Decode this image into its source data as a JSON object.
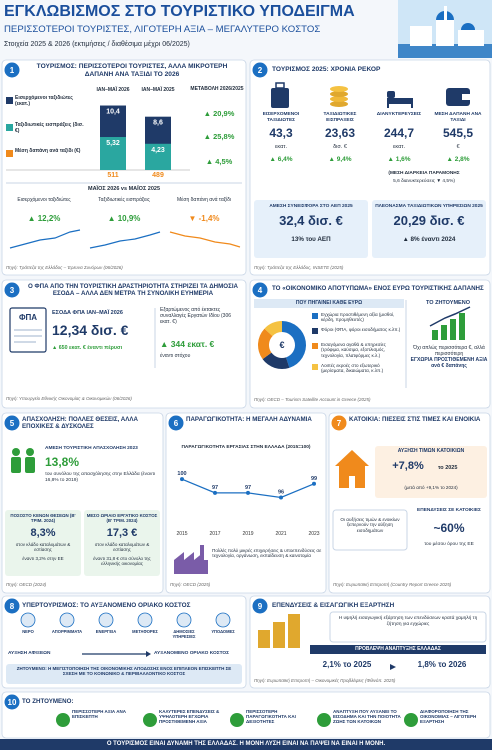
{
  "header": {
    "title": "ΕΓΚΛΩΒΙΣΜΟΣ ΣΤΟ ΤΟΥΡΙΣΤΙΚΟ ΥΠΟΔΕΙΓΜΑ",
    "subtitle": "ΠΕΡΙΣΣΟΤΕΡΟΙ ΤΟΥΡΙΣΤΕΣ, ΛΙΓΟΤΕΡΗ ΑΞΙΑ – ΜΕΓΑΛΥΤΕΡΟ ΚΟΣΤΟΣ",
    "note": "Στοιχεία 2025 & 2026 (εκτιμήσεις / διαθέσιμα μέχρι 06/2025)"
  },
  "s1": {
    "number": "1",
    "title": "ΤΟΥΡΙΣΜΟΣ: ΠΕΡΙΣΣΟΤΕΡΟΙ ΤΟΥΡΙΣΤΕΣ, ΑΛΛΑ ΜΙΚΡΟΤΕΡΗ ΔΑΠΑΝΗ ΑΝΑ ΤΑΞΙΔΙ ΤΟ 2026",
    "chart": {
      "type": "bar",
      "categories": [
        "ΙΑΝ–ΜΑΪ 2026",
        "ΙΑΝ–ΜΑΪ 2025"
      ],
      "series": [
        {
          "name": "Εισερχόμενοι ταξιδιώτες (εκατ.)",
          "color": "#1f3a68",
          "values": [
            10.4,
            8.6
          ],
          "value_labels": [
            "10,4",
            "8,6"
          ]
        },
        {
          "name": "Ταξιδιωτικές εισπράξεις (δισ. €)",
          "color": "#2aa7a0",
          "values": [
            5.32,
            4.23
          ],
          "value_labels": [
            "5,32",
            "4,23"
          ]
        },
        {
          "name": "Μέση δαπάνη ανά ταξίδι (€)",
          "color": "#f08a1c",
          "values": [
            511,
            489
          ]
        }
      ],
      "change_title": "ΜΕΤΑΒΟΛΗ 2026/2025",
      "changes": [
        "▲ 20,9%",
        "▲ 25,8%",
        "▲ 4,5%"
      ]
    },
    "may_title": "ΜΑΪΟΣ 2026 vs ΜΑΪΟΣ 2025",
    "may": [
      {
        "label": "Εισερχόμενοι ταξιδιώτες",
        "value": "▲ 12,2%"
      },
      {
        "label": "Ταξιδιωτικές εισπράξεις",
        "value": "▲ 10,9%"
      },
      {
        "label": "Μέση δαπάνη ανά ταξίδι",
        "value": "▼ -1,4%"
      }
    ],
    "source": "Πηγή: Τράπεζα της Ελλάδος – Έρευνα Συνόρων (06/2026)"
  },
  "s2": {
    "number": "2",
    "title": "ΤΟΥΡΙΣΜΟΣ 2025: ΧΡΟΝΙΑ ΡΕΚΟΡ",
    "stats": [
      {
        "label": "ΕΙΣΕΡΧΟΜΕΝΟΙ ΤΑΞΙΔΙΩΤΕΣ",
        "value": "43,3",
        "unit": "εκατ.",
        "change": "▲ 6,4%"
      },
      {
        "label": "ΤΑΞΙΔΙΩΤΙΚΕΣ ΕΙΣΠΡΑΞΕΙΣ",
        "value": "23,63",
        "unit": "δισ. €",
        "change": "▲ 9,4%"
      },
      {
        "label": "ΔΙΑΝΥΚΤΕΡΕΥΣΕΙΣ",
        "value": "244,7",
        "unit": "εκατ.",
        "change": "▲ 1,6%"
      },
      {
        "label": "ΜΕΣΗ ΔΑΠΑΝΗ ΑΝΑ ΤΑΞΙΔΙ",
        "value": "545,5",
        "unit": "€",
        "change": "▲ 2,8%"
      }
    ],
    "stay": [
      "(ΜΕΣΗ ΔΙΑΡΚΕΙΑ ΠΑΡΑΜΟΝΗΣ",
      "5,6 διανυκτερεύσεις ▼ 4,5%)"
    ],
    "boxes": [
      {
        "label": "ΑΜΕΣΗ ΣΥΝΕΙΣΦΟΡΑ ΣΤΟ ΑΕΠ 2025",
        "value": "32,4 δισ. €",
        "sub": "13% του ΑΕΠ"
      },
      {
        "label": "ΠΛΕΟΝΑΣΜΑ ΤΑΞΙΔΙΩΤΙΚΩΝ ΥΠΗΡΕΣΙΩΝ 2025",
        "value": "20,29 δισ. €",
        "sub": "▲ 8% έναντι 2024"
      }
    ],
    "source": "Πηγή: Τράπεζα της Ελλάδος, INSETE (2025)"
  },
  "s3": {
    "number": "3",
    "title": "Ο ΦΠΑ ΑΠΟ ΤΗΝ ΤΟΥΡΙΣΤΙΚΗ ΔΡΑΣΤΗΡΙΟΤΗΤΑ ΣΤΗΡΙΖΕΙ ΤΑ ΔΗΜΟΣΙΑ ΕΣΟΔΑ – ΑΛΛΑ ΔΕΝ ΜΕΤΡΑ ΤΗ ΣΥΝΟΛΙΚΗ ΕΥΗΜΕΡΙΑ",
    "icon": "ΦΠΑ",
    "label": "ΕΣΟΔΑ ΦΠΑ ΙΑΝ–ΜΑΪ 2026",
    "value": "12,34 δισ. €",
    "change": "▲ 650 εκατ. € έναντι πέρυσι",
    "note": "Εξαρτώμενος από έκτακτες συναλλαγές Εργατών Ιδίου (306 εκατ. €)",
    "extra": "▲ 344 εκατ. €",
    "extra_sub": "έναντι στόχου",
    "source": "Πηγή: Υπουργείο Εθνικής Οικονομίας & Οικονομικών (06/2026)"
  },
  "s4": {
    "number": "4",
    "title": "ΤΟ «ΟΙΚΟΝΟΜΙΚΟ ΑΠΟΤΥΠΩΜΑ» ΕΝΟΣ ΕΥΡΩ ΤΟΥΡΙΣΤΙΚΗΣ ΔΑΠΑΝΗΣ",
    "where_title": "ΠΟΥ ΠΗΓΑΙΝΕΙ ΚΑΘΕ ΕΥΡΩ",
    "chart": {
      "type": "pie",
      "categories": [
        "Εγχώρια προστιθέμενη αξία (μισθοί, κέρδη, προμηθευτές)",
        "Φόροι (ΦΠΑ, φόροι εισοδήματος κ.λπ.)",
        "Εισαγόμενα αγαθά & υπηρεσίες (τρόφιμα, καύσιμα, εξοπλισμός, τεχνολογία, πλατφόρμες κ.λ.)",
        "Λοιπές εκροές στο εξωτερικό (μερίσματα, δικαιώματα, κ.λπ.)"
      ],
      "values": [
        45,
        20,
        22,
        13
      ],
      "colors": [
        "#1b6fc2",
        "#1f3a68",
        "#f08a1c",
        "#f5c242"
      ],
      "center": "€"
    },
    "goal_title": "ΤΟ ΖΗΤΟΥΜΕΝΟ",
    "goal_text": [
      "Όχι απλώς περισσότερα €, αλλά περισσότερη",
      "ΕΓΧΩΡΙΑ ΠΡΟΣΤΙΘΕΜΕΝΗ ΑΞΙΑ ανά € δαπάνης"
    ],
    "source": "Πηγή: OECD – Tourism Satellite Account in Greece (2025)"
  },
  "s5": {
    "number": "5",
    "title": "ΑΠΑΣΧΟΛΗΣΗ: ΠΟΛΛΕΣ ΘΕΣΕΙΣ, ΑΛΛΑ ΕΠΟΧΙΚΕΣ & ΔΥΣΚΟΛΕΣ",
    "label": "ΑΜΕΣΗ ΤΟΥΡΙΣΤΙΚΗ ΑΠΑΣΧΟΛΗΣΗ 2023",
    "value": "13,8%",
    "text": "του συνόλου της απασχόλησης στην Ελλάδα (έναντι 16,8% το 2019)",
    "boxes": [
      {
        "label": "ΠΟΣΟΣΤΟ ΚΕΝΩΝ ΘΕΣΕΩΝ (Β' ΤΡΙΜ. 2024)",
        "value": "8,3%",
        "desc": "στον κλάδο καταλυμάτων & εστίασης",
        "comp": "έναντι 3,2% στην ΕΕ"
      },
      {
        "label": "ΜΕΣΟ ΩΡΙΑΙΟ ΕΡΓΑΤΙΚΟ ΚΟΣΤΟΣ (Β' ΤΡΙΜ. 2024)",
        "value": "17,3 €",
        "desc": "στον κλάδο καταλυμάτων & εστίασης",
        "comp": "έναντι 31,8 € στο σύνολο της ελληνικής οικονομίας"
      }
    ],
    "source": "Πηγή: OECD (2024)"
  },
  "s6": {
    "number": "6",
    "title": "ΠΑΡΑΓΩΓΙΚΟΤΗΤΑ: Η ΜΕΓΑΛΗ ΑΔΥΝΑΜΙΑ",
    "chart": {
      "type": "line",
      "title": "ΠΑΡΑΓΩΓΙΚΟΤΗΤΑ ΕΡΓΑΣΙΑΣ ΣΤΗΝ ΕΛΛΑΔΑ (2015=100)",
      "x": [
        2015,
        2017,
        2019,
        2021,
        2023
      ],
      "values": [
        100,
        97,
        97,
        96,
        99
      ],
      "xlim": [
        2015,
        2023
      ],
      "ylim": [
        90,
        102
      ],
      "color": "#1b6fc2"
    },
    "note": "Πολλές πολύ μικρές επιχειρήσεις & υποεπενδύσεις σε τεχνολογία, οργάνωση, εκπαίδευση & καινοτομία",
    "source": "Πηγή: OECD (2025)"
  },
  "s7": {
    "number": "7",
    "title": "ΚΑΤΟΙΚΙΑ: ΠΙΕΣΕΙΣ ΣΤΙΣ ΤΙΜΕΣ ΚΑΙ ΕΝΟΙΚΙΑ",
    "label": "ΑΥΞΗΣΗ ΤΙΜΩΝ ΚΑΤΟΙΚΙΩΝ",
    "value": "+7,8%",
    "unit": "το 2025",
    "sub": "(μετά από +9,1% το 2024)",
    "text": "Οι αυξήσεις τιμών & ενοικίων ξεπερνούν την αύξηση εισοδημάτων",
    "label2": "ΕΠΕΝΔΥΣΕΙΣ ΣΕ ΚΑΤΟΙΚΙΕΣ",
    "value2": "~60%",
    "sub2": "του μέσου όρου της ΕΕ",
    "source": "Πηγή: Ευρωπαϊκή Επιτροπή (Country Report Greece 2025)"
  },
  "s8": {
    "number": "8",
    "title": "ΥΠΕΡΤΟΥΡΙΣΜΟΣ: ΤΟ ΑΥΞΑΝΟΜΕΝΟ ΟΡΙΑΚΟ ΚΟΣΤΟΣ",
    "icons": [
      "ΝΕΡΟ",
      "ΑΠΟΡΡΙΜΜΑΤΑ",
      "ΕΝΕΡΓΕΙΑ",
      "ΜΕΤΑΦΟΡΕΣ",
      "ΔΗΜΟΣΙΕΣ ΥΠΗΡΕΣΙΕΣ",
      "ΥΠΟΔΟΜΕΣ"
    ],
    "from": "ΑΥΞΗΣΗ ΑΦΙΞΕΩΝ",
    "to": "ΑΥΞΑΝΟΜΕΝΟ ΟΡΙΑΚΟ ΚΟΣΤΟΣ",
    "goal": "ΖΗΤΟΥΜΕΝΟ: Η ΜΕΓΙΣΤΟΠΟΙΗΣΗ ΤΗΣ ΟΙΚΟΝΟΜΙΚΗΣ ΑΠΟΔΟΣΗΣ ΕΝΟΣ ΕΠΙΠΛΕΟΝ ΕΠΙΣΚΕΠΤΗ ΣΕ ΣΧΕΣΗ ΜΕ ΤΟ ΚΟΙΝΩΝΙΚΟ & ΠΕΡΙΒΑΛΛΟΝΤΙΚΟ ΚΟΣΤΟΣ"
  },
  "s9": {
    "number": "9",
    "title": "ΕΠΕΝΔΥΣΕΙΣ & ΕΙΣΑΓΩΓΙΚΗ ΕΞΑΡΤΗΣΗ",
    "text": "Η υψηλή εισαγωγική εξάρτηση των επενδύσεων κρατά χαμηλή τη ζήτηση για εγχώριες",
    "forecast": "ΠΡΟΒΛΕΨΗ ΑΝΑΠΤΥΞΗΣ ΕΛΛΑΔΑΣ",
    "values": [
      "2,1% το 2025",
      "1,8% το 2026"
    ],
    "source": "Πηγή: Ευρωπαϊκή Επιτροπή – Οικονομικές Προβλέψεις (Φθινόπ. 2025)"
  },
  "s10": {
    "number": "10",
    "title": "ΤΟ ΖΗΤΟΥΜΕΝΟ:",
    "items": [
      "ΠΕΡΙΣΣΟΤΕΡΗ ΑΞΙΑ ΑΝΑ ΕΠΙΣΚΕΠΤΗ",
      "ΚΑΛΥΤΕΡΕΣ ΕΠΕΝΔΥΣΕΙΣ & ΥΨΗΛΟΤΕΡΗ ΕΓΧΩΡΙΑ ΠΡΟΣΤΙΘΕΜΕΝΗ ΑΞΙΑ",
      "ΠΕΡΙΣΣΟΤΕΡΗ ΠΑΡΑΓΩΓΙΚΟΤΗΤΑ ΚΑΙ ΔΕΞΙΟΤΗΤΕΣ",
      "ΑΝΑΠΤΥΞΗ ΠΟΥ ΑΥΞΑΝΕΙ ΤΟ ΕΙΣΟΔΗΜΑ ΚΑΙ ΤΗΝ ΠΟΙΟΤΗΤΑ ΖΩΗΣ ΤΩΝ ΚΑΤΟΙΚΩΝ",
      "ΔΙΑΦΟΡΟΠΟΙΗΣΗ ΤΗΣ ΟΙΚΟΝΟΜΙΑΣ – ΛΙΓΟΤΕΡΗ ΕΞΑΡΤΗΣΗ"
    ]
  },
  "footer": "Ο ΤΟΥΡΙΣΜΟΣ ΕΙΝΑΙ ΔΥΝΑΜΗ ΤΗΣ ΕΛΛΑΔΑΣ. Η ΜΟΝΗ ΛΥΣΗ ΕΙΝΑΙ ΝΑ ΠΑΨΕΙ ΝΑ ΕΙΝΑΙ Η ΜΟΝΗ."
}
